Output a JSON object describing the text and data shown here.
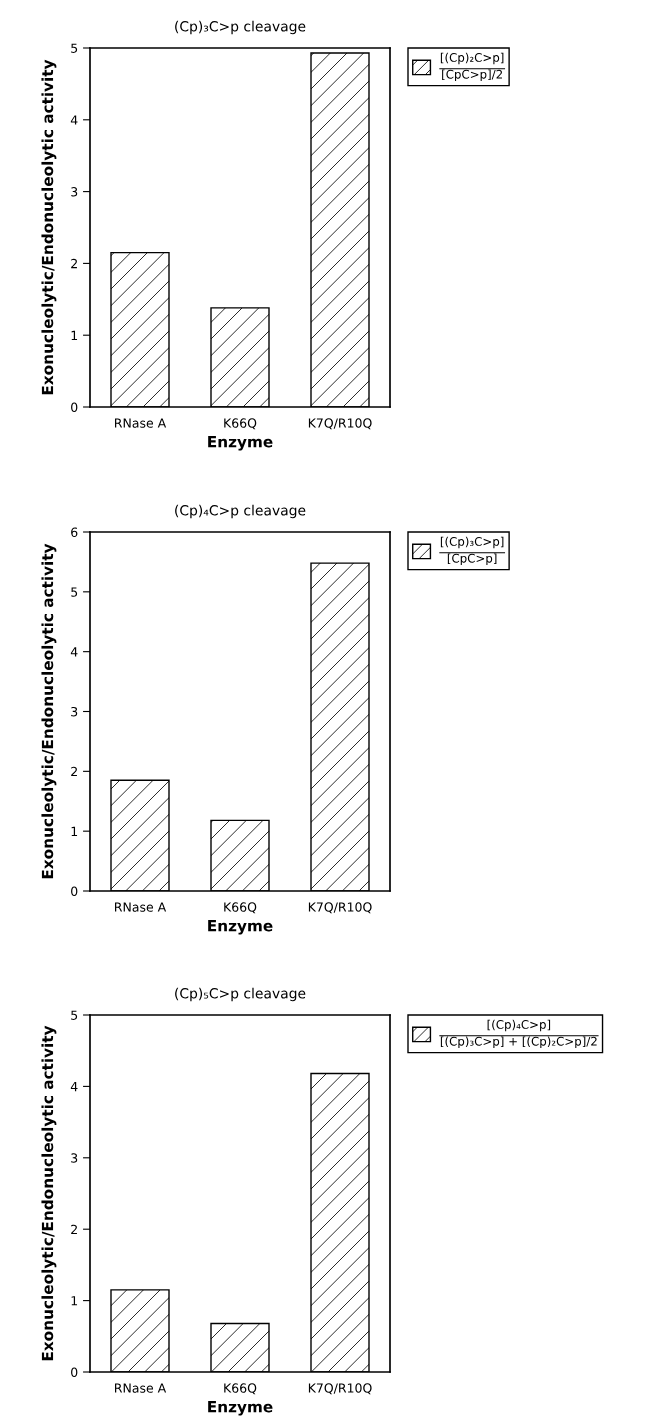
{
  "chart_data": [
    {
      "type": "bar",
      "title": "(Cp)₃C>p cleavage",
      "xlabel": "Enzyme",
      "ylabel": "Exonucleolytic/Endonucleolytic activity",
      "categories": [
        "RNase A",
        "K66Q",
        "K7Q/R10Q"
      ],
      "series": [
        {
          "name": "[(Cp)₂C>p]\n[CpC>p]/2",
          "color": "#000000",
          "values": [
            2.15,
            1.38,
            4.93
          ]
        }
      ],
      "ylim": [
        0,
        5
      ],
      "yticks": [
        0,
        1,
        2,
        3,
        4,
        5
      ],
      "legend": "top right",
      "grid": false
    },
    {
      "type": "bar",
      "title": "(Cp)₄C>p cleavage",
      "xlabel": "Enzyme",
      "ylabel": "Exonucleolytic/Endonucleolytic activity",
      "categories": [
        "RNase A",
        "K66Q",
        "K7Q/R10Q"
      ],
      "series": [
        {
          "name": "[(Cp)₃C>p]\n[CpC>p]",
          "color": "#000000",
          "values": [
            1.85,
            1.18,
            5.48
          ]
        }
      ],
      "ylim": [
        0,
        6
      ],
      "yticks": [
        0,
        1,
        2,
        3,
        4,
        5,
        6
      ],
      "legend": "top right",
      "grid": false
    },
    {
      "type": "bar",
      "title": "(Cp)₅C>p cleavage",
      "xlabel": "Enzyme",
      "ylabel": "Exonucleolytic/Endonucleolytic activity",
      "categories": [
        "RNase A",
        "K66Q",
        "K7Q/R10Q"
      ],
      "series": [
        {
          "name": "[(Cp)₄C>p]\n[(Cp)₃C>p] + [(Cp)₂C>p]/2",
          "color": "#000000",
          "values": [
            1.15,
            0.68,
            4.18
          ]
        }
      ],
      "ylim": [
        0,
        5
      ],
      "yticks": [
        0,
        1,
        2,
        3,
        4,
        5
      ],
      "legend": "top right",
      "grid": false
    }
  ]
}
